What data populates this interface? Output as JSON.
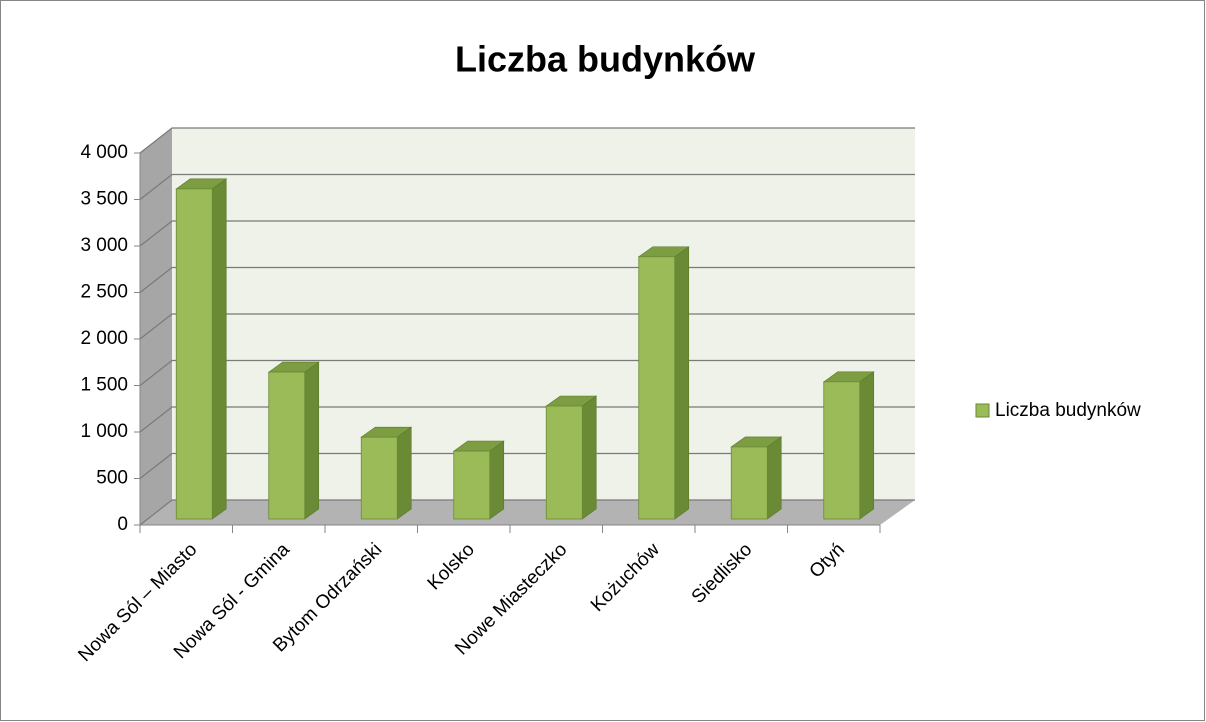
{
  "chart_data": {
    "type": "bar3d",
    "title": "Liczba budynków",
    "categories": [
      "Nowa Sól – Miasto",
      "Nowa Sól - Gmina",
      "Bytom Odrzański",
      "Kolsko",
      "Nowe Miasteczko",
      "Kożuchów",
      "Siedlisko",
      "Otyń"
    ],
    "series": [
      {
        "name": "Liczba budynków",
        "color": "#9bbb59",
        "values": [
          3550,
          1580,
          880,
          730,
          1215,
          2820,
          775,
          1475
        ]
      }
    ],
    "ylim": [
      0,
      4000
    ],
    "yticks": [
      0,
      500,
      {
        "value": 1000,
        "label": "1 000"
      },
      {
        "value": 1500,
        "label": "1 500"
      },
      {
        "value": 2000,
        "label": "2 000"
      },
      {
        "value": 2500,
        "label": "2 500"
      },
      {
        "value": 3000,
        "label": "3 000"
      },
      {
        "value": 3500,
        "label": "3 500"
      },
      {
        "value": 4000,
        "label": "4 000"
      }
    ],
    "grid": true,
    "legend": "right"
  }
}
